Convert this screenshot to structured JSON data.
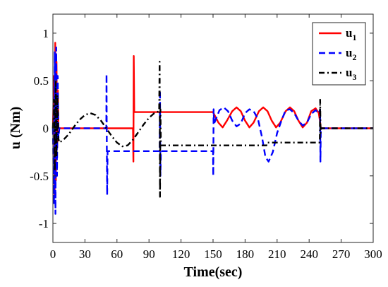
{
  "chart_data": {
    "type": "line",
    "xlabel": "Time(sec)",
    "ylabel": "u (Nm)",
    "xlim": [
      0,
      300
    ],
    "ylim": [
      -1.2,
      1.2
    ],
    "xticks": [
      "0",
      "30",
      "60",
      "90",
      "120",
      "150",
      "180",
      "210",
      "240",
      "270",
      "300"
    ],
    "yticks": [
      "-1",
      "-0.5",
      "0",
      "0.5",
      "1"
    ],
    "grid": false,
    "legend_position": "top-right",
    "series": [
      {
        "name": "u",
        "sub": "1",
        "color": "#ff0000",
        "dash": "solid",
        "points": [
          [
            0,
            0
          ],
          [
            1,
            0.55
          ],
          [
            1.6,
            -0.7
          ],
          [
            2.2,
            0.9
          ],
          [
            2.8,
            -0.55
          ],
          [
            3.4,
            0.7
          ],
          [
            4,
            -0.2
          ],
          [
            4.6,
            0.4
          ],
          [
            5.2,
            0
          ],
          [
            6,
            0
          ],
          [
            75,
            0
          ],
          [
            75.4,
            -0.35
          ],
          [
            75.7,
            0.76
          ],
          [
            76.2,
            0.17
          ],
          [
            150,
            0.17
          ],
          [
            155,
            0.06
          ],
          [
            159,
            0.01
          ],
          [
            163,
            0.08
          ],
          [
            168,
            0.18
          ],
          [
            172,
            0.22
          ],
          [
            176,
            0.18
          ],
          [
            180,
            0.08
          ],
          [
            184,
            0.01
          ],
          [
            188,
            0.06
          ],
          [
            193,
            0.18
          ],
          [
            197,
            0.22
          ],
          [
            201,
            0.18
          ],
          [
            205,
            0.08
          ],
          [
            209,
            0.01
          ],
          [
            213,
            0.06
          ],
          [
            218,
            0.18
          ],
          [
            222,
            0.22
          ],
          [
            226,
            0.18
          ],
          [
            230,
            0.08
          ],
          [
            234,
            0.01
          ],
          [
            238,
            0.06
          ],
          [
            242,
            0.18
          ],
          [
            246,
            0.21
          ],
          [
            249,
            0.16
          ],
          [
            250.5,
            0.05
          ],
          [
            251,
            0
          ],
          [
            300,
            0
          ]
        ]
      },
      {
        "name": "u",
        "sub": "2",
        "color": "#0000ff",
        "dash": "dashed",
        "points": [
          [
            0,
            0
          ],
          [
            1,
            -0.8
          ],
          [
            1.7,
            0.8
          ],
          [
            2.4,
            -0.9
          ],
          [
            3.1,
            0.85
          ],
          [
            3.8,
            -0.5
          ],
          [
            4.5,
            0.55
          ],
          [
            5.2,
            -0.1
          ],
          [
            6,
            0
          ],
          [
            50,
            0
          ],
          [
            50.2,
            0.57
          ],
          [
            50.5,
            -0.2
          ],
          [
            50.8,
            -0.7
          ],
          [
            51.2,
            -0.24
          ],
          [
            100,
            -0.24
          ],
          [
            100.3,
            0.4
          ],
          [
            100.7,
            -0.5
          ],
          [
            101.2,
            -0.24
          ],
          [
            150,
            -0.24
          ],
          [
            150.2,
            -0.5
          ],
          [
            150.5,
            0.2
          ],
          [
            151,
            0.05
          ],
          [
            156,
            0.19
          ],
          [
            160,
            0.22
          ],
          [
            164,
            0.18
          ],
          [
            168,
            0.08
          ],
          [
            172,
            0.02
          ],
          [
            176,
            0.05
          ],
          [
            180,
            0.16
          ],
          [
            184,
            0.2
          ],
          [
            188,
            0.18
          ],
          [
            192,
            0.1
          ],
          [
            196,
            -0.1
          ],
          [
            199,
            -0.3
          ],
          [
            202,
            -0.35
          ],
          [
            206,
            -0.25
          ],
          [
            210,
            -0.05
          ],
          [
            214,
            0.08
          ],
          [
            218,
            0.19
          ],
          [
            222,
            0.2
          ],
          [
            226,
            0.16
          ],
          [
            230,
            0.08
          ],
          [
            234,
            0.03
          ],
          [
            238,
            0.06
          ],
          [
            242,
            0.15
          ],
          [
            246,
            0.19
          ],
          [
            249,
            0.16
          ],
          [
            250.3,
            0.2
          ],
          [
            250.6,
            -0.35
          ],
          [
            251,
            0
          ],
          [
            300,
            0
          ]
        ]
      },
      {
        "name": "u",
        "sub": "3",
        "color": "#000000",
        "dash": "dashdot",
        "points": [
          [
            0,
            0
          ],
          [
            1,
            0.3
          ],
          [
            1.8,
            -0.45
          ],
          [
            2.6,
            0.5
          ],
          [
            3.4,
            -0.3
          ],
          [
            4.2,
            0.35
          ],
          [
            5,
            -0.1
          ],
          [
            6,
            -0.15
          ],
          [
            10,
            -0.12
          ],
          [
            15,
            -0.06
          ],
          [
            20,
            0.02
          ],
          [
            25,
            0.09
          ],
          [
            30,
            0.14
          ],
          [
            35,
            0.16
          ],
          [
            40,
            0.14
          ],
          [
            45,
            0.08
          ],
          [
            50,
            0
          ],
          [
            55,
            -0.08
          ],
          [
            60,
            -0.15
          ],
          [
            65,
            -0.19
          ],
          [
            70,
            -0.18
          ],
          [
            75,
            -0.12
          ],
          [
            80,
            -0.04
          ],
          [
            85,
            0.04
          ],
          [
            90,
            0.11
          ],
          [
            95,
            0.16
          ],
          [
            99.5,
            0.18
          ],
          [
            100,
            0.7
          ],
          [
            100.3,
            -0.72
          ],
          [
            100.7,
            0.2
          ],
          [
            101.2,
            -0.18
          ],
          [
            150,
            -0.18
          ],
          [
            200,
            -0.18
          ],
          [
            200.5,
            -0.15
          ],
          [
            250,
            -0.15
          ],
          [
            250.3,
            0.3
          ],
          [
            250.7,
            -0.05
          ],
          [
            251,
            0
          ],
          [
            300,
            0
          ]
        ]
      }
    ]
  }
}
